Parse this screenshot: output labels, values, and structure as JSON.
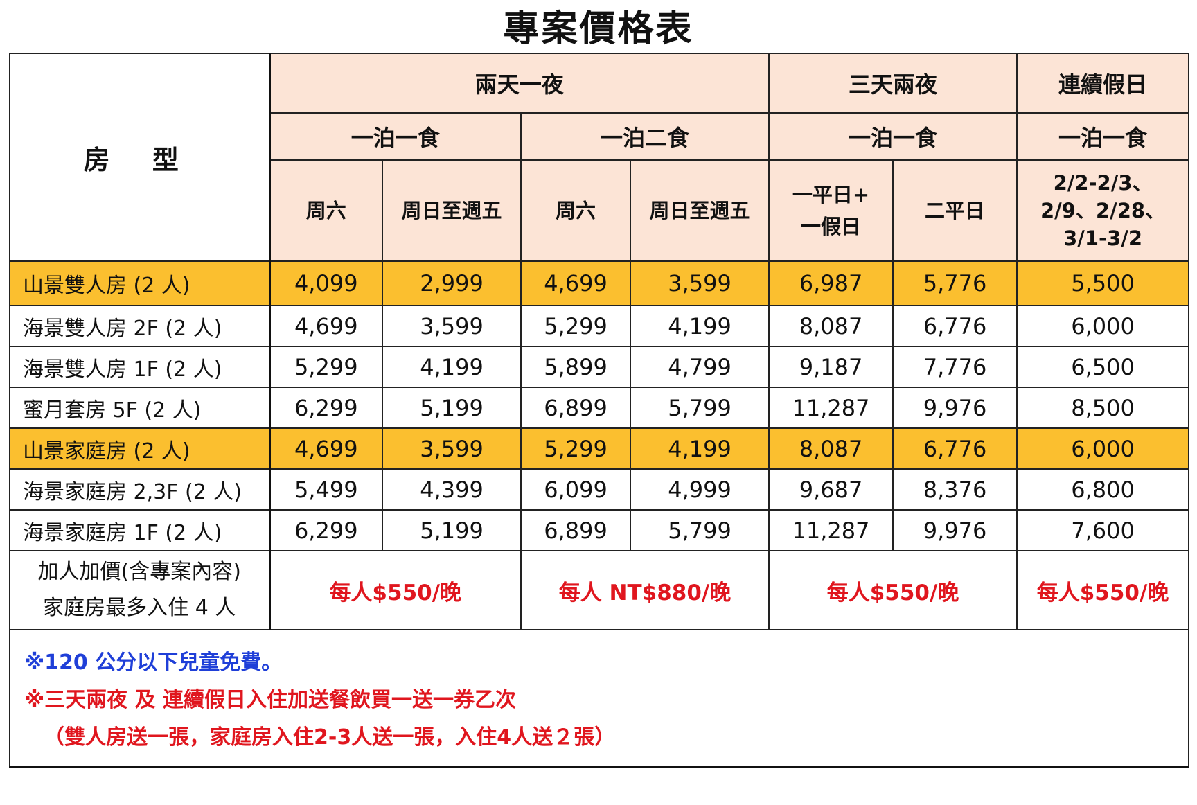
{
  "title": "專案價格表",
  "header": {
    "room_type": "房 型",
    "groups": [
      "兩天一夜",
      "三天兩夜",
      "連續假日"
    ],
    "meals": [
      "一泊一食",
      "一泊二食",
      "一泊一食",
      "一泊一食"
    ],
    "days": [
      "周六",
      "周日至週五",
      "周六",
      "周日至週五",
      "一平日+\n一假日",
      "二平日",
      "2/2-2/3、\n2/9、2/28、\n3/1-3/2"
    ]
  },
  "rows": [
    {
      "name": "山景雙人房 (2 人)",
      "highlight": true,
      "prices": [
        "4,099",
        "2,999",
        "4,699",
        "3,599",
        "6,987",
        "5,776",
        "5,500"
      ]
    },
    {
      "name": "海景雙人房 2F (2 人)",
      "highlight": false,
      "prices": [
        "4,699",
        "3,599",
        "5,299",
        "4,199",
        "8,087",
        "6,776",
        "6,000"
      ]
    },
    {
      "name": "海景雙人房 1F (2 人)",
      "highlight": false,
      "prices": [
        "5,299",
        "4,199",
        "5,899",
        "4,799",
        "9,187",
        "7,776",
        "6,500"
      ]
    },
    {
      "name": "蜜月套房 5F (2 人)",
      "highlight": false,
      "prices": [
        "6,299",
        "5,199",
        "6,899",
        "5,799",
        "11,287",
        "9,976",
        "8,500"
      ]
    },
    {
      "name": "山景家庭房 (2 人)",
      "highlight": true,
      "prices": [
        "4,699",
        "3,599",
        "5,299",
        "4,199",
        "8,087",
        "6,776",
        "6,000"
      ]
    },
    {
      "name": "海景家庭房 2,3F (2 人)",
      "highlight": false,
      "prices": [
        "5,499",
        "4,399",
        "6,099",
        "4,999",
        "9,687",
        "8,376",
        "6,800"
      ]
    },
    {
      "name": "海景家庭房 1F (2 人)",
      "highlight": false,
      "prices": [
        "6,299",
        "5,199",
        "6,899",
        "5,799",
        "11,287",
        "9,976",
        "7,600"
      ]
    }
  ],
  "extra": {
    "label_line1": "加人加價(含專案內容)",
    "label_line2": "家庭房最多入住 4 人",
    "prices": [
      "每人$550/晚",
      "每人 NT$880/晚",
      "每人$550/晚",
      "每人$550/晚"
    ]
  },
  "notes": [
    "※120 公分以下兒童免費。",
    "※三天兩夜 及 連續假日入住加送餐飲買一送一券乙次",
    "（雙人房送一張，家庭房入住2-3人送一張，入住4人送２張）"
  ],
  "colors": {
    "highlight_row": "#fbbf2f",
    "header_bg": "#fce4d6",
    "price_red": "#e0161e",
    "note_blue": "#1f3fd8"
  }
}
